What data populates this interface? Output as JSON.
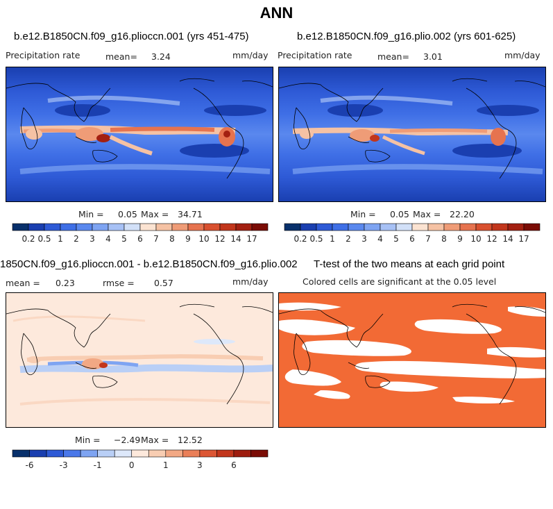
{
  "title": "ANN",
  "panels": [
    {
      "id": "top-left",
      "case": "b.e12.B1850CN.f09_g16.plioccn.001 (yrs 451-475)",
      "variable": "Precipitation rate",
      "mean_label": "mean=",
      "mean": "3.24",
      "units": "mm/day",
      "min_label": "Min =",
      "min": "0.05",
      "max_label": "Max =",
      "max": "34.71"
    },
    {
      "id": "top-right",
      "case": "b.e12.B1850CN.f09_g16.plio.002 (yrs 601-625)",
      "variable": "Precipitation rate",
      "mean_label": "mean=",
      "mean": "3.01",
      "units": "mm/day",
      "min_label": "Min =",
      "min": "0.05",
      "max_label": "Max =",
      "max": "22.20"
    },
    {
      "id": "bottom-left",
      "case": "1850CN.f09_g16.plioccn.001 - b.e12.B1850CN.f09_g16.plio.002",
      "mean_label": "mean =",
      "mean": "0.23",
      "rmse_label": "rmse =",
      "rmse": "0.57",
      "units": "mm/day",
      "min_label": "Min =",
      "min": "−2.49",
      "max_label": "Max =",
      "max": "12.52"
    },
    {
      "id": "bottom-right",
      "case": "T-test of the two means at each grid point",
      "subtitle": "Colored cells are significant at the 0.05 level"
    }
  ],
  "chart_data": [
    {
      "type": "heatmap",
      "title": "b.e12.B1850CN.f09_g16.plioccn.001 (yrs 451-475)",
      "variable": "Precipitation rate",
      "units": "mm/day",
      "mean": 3.24,
      "min": 0.05,
      "max": 34.71,
      "colorbar": {
        "levels": [
          "0.2",
          "0.5",
          "1",
          "2",
          "3",
          "4",
          "5",
          "6",
          "7",
          "8",
          "9",
          "10",
          "12",
          "14",
          "17"
        ],
        "colors": [
          "#08306b",
          "#1a3fb0",
          "#2e5ad6",
          "#3f6fe6",
          "#5a88ee",
          "#7ea4f2",
          "#a7c1f5",
          "#d2e0f8",
          "#fbe3d2",
          "#f5c2a4",
          "#ef9c77",
          "#e6734f",
          "#d9502f",
          "#c2361c",
          "#a32011",
          "#7a0c05"
        ]
      }
    },
    {
      "type": "heatmap",
      "title": "b.e12.B1850CN.f09_g16.plio.002 (yrs 601-625)",
      "variable": "Precipitation rate",
      "units": "mm/day",
      "mean": 3.01,
      "min": 0.05,
      "max": 22.2,
      "colorbar": {
        "levels": [
          "0.2",
          "0.5",
          "1",
          "2",
          "3",
          "4",
          "5",
          "6",
          "7",
          "8",
          "9",
          "10",
          "12",
          "14",
          "17"
        ],
        "colors": [
          "#08306b",
          "#1a3fb0",
          "#2e5ad6",
          "#3f6fe6",
          "#5a88ee",
          "#7ea4f2",
          "#a7c1f5",
          "#d2e0f8",
          "#fbe3d2",
          "#f5c2a4",
          "#ef9c77",
          "#e6734f",
          "#d9502f",
          "#c2361c",
          "#a32011",
          "#7a0c05"
        ]
      }
    },
    {
      "type": "heatmap",
      "title": "1850CN.f09_g16.plioccn.001 - b.e12.B1850CN.f09_g16.plio.002",
      "units": "mm/day",
      "mean": 0.23,
      "rmse": 0.57,
      "min": -2.49,
      "max": 12.52,
      "colorbar": {
        "levels": [
          "-6",
          "",
          "-3",
          "",
          "-1",
          "",
          "0",
          "",
          "1",
          "",
          "3",
          "",
          "6",
          ""
        ],
        "colors": [
          "#08306b",
          "#1a3fb0",
          "#2e5ad6",
          "#4a78ea",
          "#7ea4f2",
          "#b9cff6",
          "#dde8fa",
          "#fde9dc",
          "#f8cdb2",
          "#f2a884",
          "#ea7f58",
          "#dc5634",
          "#c2361c",
          "#9e1d0f",
          "#7a0c05"
        ]
      }
    },
    {
      "type": "heatmap",
      "title": "T-test of the two means at each grid point",
      "subtitle": "Colored cells are significant at the 0.05 level",
      "colors": {
        "significant": "#f26a35",
        "not_significant": "#ffffff"
      }
    }
  ]
}
